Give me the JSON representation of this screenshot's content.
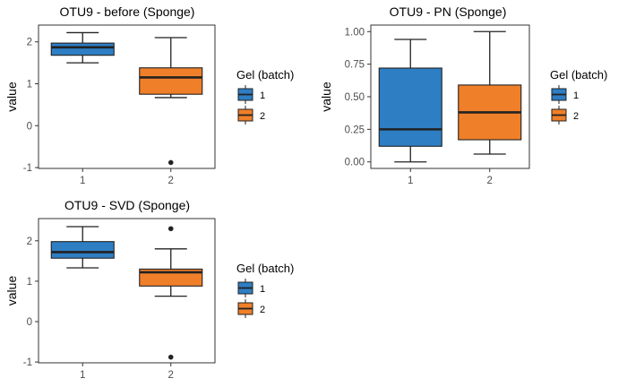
{
  "colors": {
    "batch_1": "#2e7ec4",
    "batch_2": "#f07f29",
    "outline": "#222222",
    "panel_border": "#333333"
  },
  "legend": {
    "title": "Gel (batch)",
    "entries": [
      "1",
      "2"
    ]
  },
  "chart_data": [
    {
      "type": "box",
      "title": "OTU9 - before (Sponge)",
      "xlabel": "",
      "ylabel": "value",
      "categories": [
        "1",
        "2"
      ],
      "ylim": [
        -1.02,
        2.4
      ],
      "yticks": [
        -1,
        0,
        1,
        2
      ],
      "ytick_labels": [
        "-1",
        "0",
        "1",
        "2"
      ],
      "grid": false,
      "legend_position": "right",
      "boxes": [
        {
          "batch": "1",
          "whisker_low": 1.5,
          "q1": 1.68,
          "median": 1.87,
          "q3": 1.97,
          "whisker_high": 2.22,
          "outliers": []
        },
        {
          "batch": "2",
          "whisker_low": 0.67,
          "q1": 0.75,
          "median": 1.15,
          "q3": 1.38,
          "whisker_high": 2.1,
          "outliers": [
            -0.88
          ]
        }
      ]
    },
    {
      "type": "box",
      "title": "OTU9 - PN (Sponge)",
      "xlabel": "",
      "ylabel": "value",
      "categories": [
        "1",
        "2"
      ],
      "ylim": [
        -0.05,
        1.05
      ],
      "yticks": [
        0,
        0.25,
        0.5,
        0.75,
        1
      ],
      "ytick_labels": [
        "0.00",
        "0.25",
        "0.50",
        "0.75",
        "1.00"
      ],
      "grid": false,
      "legend_position": "right",
      "boxes": [
        {
          "batch": "1",
          "whisker_low": 0.0,
          "q1": 0.12,
          "median": 0.25,
          "q3": 0.72,
          "whisker_high": 0.94,
          "outliers": []
        },
        {
          "batch": "2",
          "whisker_low": 0.06,
          "q1": 0.17,
          "median": 0.38,
          "q3": 0.59,
          "whisker_high": 1.0,
          "outliers": []
        }
      ]
    },
    {
      "type": "box",
      "title": "OTU9 - SVD (Sponge)",
      "xlabel": "",
      "ylabel": "value",
      "categories": [
        "1",
        "2"
      ],
      "ylim": [
        -1.02,
        2.55
      ],
      "yticks": [
        -1,
        0,
        1,
        2
      ],
      "ytick_labels": [
        "-1",
        "0",
        "1",
        "2"
      ],
      "grid": false,
      "legend_position": "right",
      "boxes": [
        {
          "batch": "1",
          "whisker_low": 1.33,
          "q1": 1.57,
          "median": 1.72,
          "q3": 1.98,
          "whisker_high": 2.35,
          "outliers": []
        },
        {
          "batch": "2",
          "whisker_low": 0.63,
          "q1": 0.88,
          "median": 1.22,
          "q3": 1.3,
          "whisker_high": 1.8,
          "outliers": [
            2.3,
            -0.88
          ]
        }
      ]
    }
  ]
}
